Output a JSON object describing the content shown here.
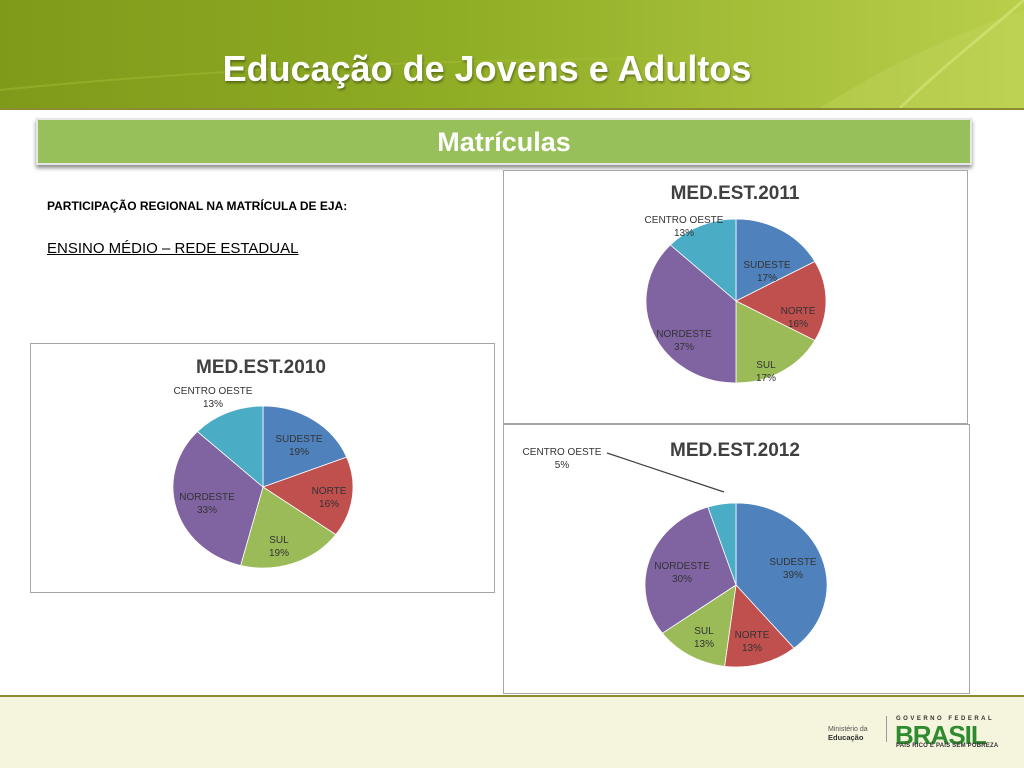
{
  "slide": {
    "title": "Educação de Jovens e Adultos",
    "banner": "Matrículas",
    "subtitle": "PARTICIPAÇÃO REGIONAL NA MATRÍCULA DE EJA:",
    "subtitle2": "ENSINO MÉDIO – REDE ESTADUAL"
  },
  "footer": {
    "ministerio_line1": "Ministério da",
    "ministerio_line2": "Educação",
    "governo": "GOVERNO FEDERAL",
    "brasil": "BRASIL",
    "slogan": "PAÍS RICO É PAÍS SEM POBREZA"
  },
  "colors": {
    "SUDESTE": "#4f81bd",
    "NORTE": "#c0504d",
    "SUL": "#9bbb59",
    "NORDESTE": "#8064a2",
    "CENTRO OESTE": "#4bacc6",
    "header_green": "#8fad25",
    "banner_green": "#98c05a"
  },
  "chart_data": [
    {
      "type": "pie",
      "title": "MED.EST.2010",
      "labels": [
        "SUDESTE",
        "NORTE",
        "SUL",
        "NORDESTE",
        "CENTRO OESTE"
      ],
      "values": [
        19,
        16,
        19,
        33,
        13
      ],
      "value_labels": [
        "19%",
        "16%",
        "19%",
        "33%",
        "13%"
      ]
    },
    {
      "type": "pie",
      "title": "MED.EST.2011",
      "labels": [
        "SUDESTE",
        "NORTE",
        "SUL",
        "NORDESTE",
        "CENTRO OESTE"
      ],
      "values": [
        17,
        16,
        17,
        37,
        13
      ],
      "value_labels": [
        "17%",
        "16%",
        "17%",
        "37%",
        "13%"
      ]
    },
    {
      "type": "pie",
      "title": "MED.EST.2012",
      "labels": [
        "SUDESTE",
        "NORTE",
        "SUL",
        "NORDESTE",
        "CENTRO OESTE"
      ],
      "values": [
        39,
        13,
        13,
        30,
        5
      ],
      "value_labels": [
        "39%",
        "13%",
        "13%",
        "30%",
        "5%"
      ]
    }
  ]
}
